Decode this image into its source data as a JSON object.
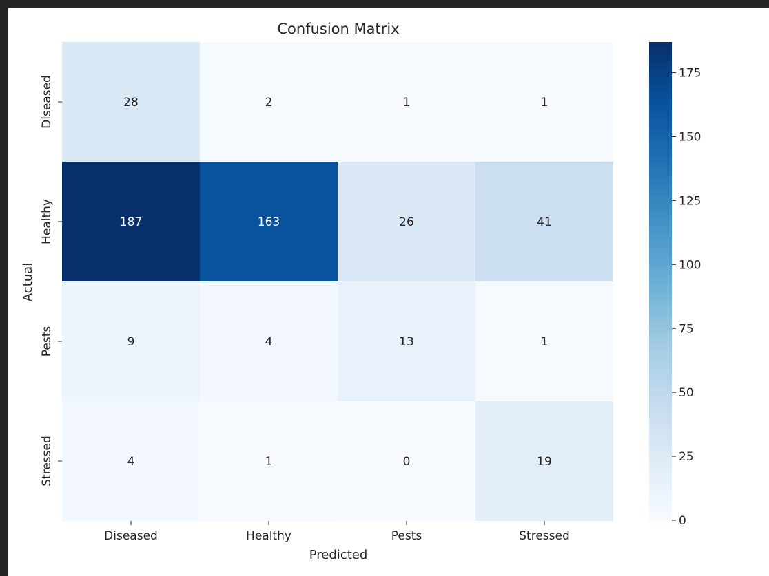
{
  "chart_data": {
    "type": "heatmap",
    "title": "Confusion Matrix",
    "xlabel": "Predicted",
    "ylabel": "Actual",
    "x_categories": [
      "Diseased",
      "Healthy",
      "Pests",
      "Stressed"
    ],
    "y_categories": [
      "Diseased",
      "Healthy",
      "Pests",
      "Stressed"
    ],
    "values": [
      [
        28,
        2,
        1,
        1
      ],
      [
        187,
        163,
        26,
        41
      ],
      [
        9,
        4,
        13,
        1
      ],
      [
        4,
        1,
        0,
        19
      ]
    ],
    "colormap": "Blues",
    "colorbar": {
      "range": [
        0,
        187
      ],
      "ticks": [
        0,
        25,
        50,
        75,
        100,
        125,
        150,
        175
      ]
    },
    "colors": {
      "frame_background": "#252525",
      "low_text": "#262626",
      "high_text": "#ffffff"
    }
  }
}
